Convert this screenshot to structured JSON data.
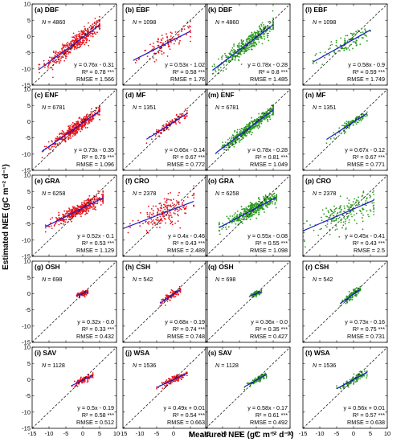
{
  "chart_data": {
    "type": "scatter",
    "xlabel": "Measured NEE (gC m⁻² d⁻¹)",
    "ylabel": "Estimated NEE (gC m⁻² d⁻¹)",
    "xlim": [
      -15,
      10
    ],
    "ylim": [
      -15,
      10
    ],
    "xticks": [
      -15,
      -10,
      -5,
      0,
      5,
      10
    ],
    "yticks": [
      -15,
      -10,
      -5,
      0,
      5,
      10
    ],
    "grid": false,
    "reference_line": "1:1",
    "panels": [
      {
        "label": "(a) DBF",
        "model": "red",
        "n": "4860",
        "slope": 0.76,
        "intercept": -0.31,
        "eq": "y = 0.76x - 0.31",
        "r2": "R² = 0.78 ***",
        "rmse": "RMSE = 1.566",
        "xrange": [
          -13,
          5
        ]
      },
      {
        "label": "(b) EBF",
        "model": "red",
        "n": "1098",
        "slope": 0.53,
        "intercept": -1.02,
        "eq": "y = 0.53x - 1.02",
        "r2": "R² = 0.58 ***",
        "rmse": "RMSE = 1.76",
        "xrange": [
          -12,
          5
        ]
      },
      {
        "label": "(k) DBF",
        "model": "green",
        "n": "4860",
        "slope": 0.78,
        "intercept": -0.28,
        "eq": "y = 0.78x - 0.28",
        "r2": "R² = 0.8 ***",
        "rmse": "RMSE = 1.485",
        "xrange": [
          -13,
          5
        ]
      },
      {
        "label": "(l) EBF",
        "model": "green",
        "n": "1098",
        "slope": 0.58,
        "intercept": -0.9,
        "eq": "y = 0.58x - 0.9",
        "r2": "R² = 0.59 ***",
        "rmse": "RMSE = 1.749",
        "xrange": [
          -12,
          5
        ]
      },
      {
        "label": "(c) ENF",
        "model": "red",
        "n": "6781",
        "slope": 0.73,
        "intercept": -0.35,
        "eq": "y = 0.73x - 0.35",
        "r2": "R² = 0.79 ***",
        "rmse": "RMSE = 1.096",
        "xrange": [
          -12,
          5
        ]
      },
      {
        "label": "(d) MF",
        "model": "red",
        "n": "1351",
        "slope": 0.66,
        "intercept": -0.14,
        "eq": "y = 0.66x - 0.14",
        "r2": "R² = 0.67 ***",
        "rmse": "RMSE = 0.772",
        "xrange": [
          -8,
          4
        ]
      },
      {
        "label": "(m) ENF",
        "model": "green",
        "n": "6781",
        "slope": 0.78,
        "intercept": -0.28,
        "eq": "y = 0.78x - 0.28",
        "r2": "R² = 0.81 ***",
        "rmse": "RMSE = 1.049",
        "xrange": [
          -12,
          5
        ]
      },
      {
        "label": "(n) MF",
        "model": "green",
        "n": "1351",
        "slope": 0.67,
        "intercept": -0.12,
        "eq": "y = 0.67x - 0.12",
        "r2": "R² = 0.67 ***",
        "rmse": "RMSE = 0.771",
        "xrange": [
          -8,
          4
        ]
      },
      {
        "label": "(e) GRA",
        "model": "red",
        "n": "6258",
        "slope": 0.52,
        "intercept": -0.1,
        "eq": "y = 0.52x - 0.1",
        "r2": "R² = 0.53 ***",
        "rmse": "RMSE = 1.129",
        "xrange": [
          -11,
          6
        ]
      },
      {
        "label": "(f) CRO",
        "model": "red",
        "n": "2378",
        "slope": 0.4,
        "intercept": -0.46,
        "eq": "y = 0.4x - 0.46",
        "r2": "R² = 0.43 ***",
        "rmse": "RMSE = 2.489",
        "xrange": [
          -15,
          6
        ]
      },
      {
        "label": "(o) GRA",
        "model": "green",
        "n": "6258",
        "slope": 0.55,
        "intercept": -0.08,
        "eq": "y = 0.55x - 0.08",
        "r2": "R² = 0.55 ***",
        "rmse": "RMSE = 1.098",
        "xrange": [
          -11,
          6
        ]
      },
      {
        "label": "(p) CRO",
        "model": "green",
        "n": "2378",
        "slope": 0.45,
        "intercept": -0.41,
        "eq": "y = 0.45x - 0.41",
        "r2": "R² = 0.43 ***",
        "rmse": "RMSE = 2.5",
        "xrange": [
          -15,
          6
        ]
      },
      {
        "label": "(g) OSH",
        "model": "red",
        "n": "698",
        "slope": 0.32,
        "intercept": 0.0,
        "eq": "y = 0.32x - 0.0",
        "r2": "R² = 0.33 ***",
        "rmse": "RMSE = 0.432",
        "xrange": [
          -2,
          1.5
        ]
      },
      {
        "label": "(h) CSH",
        "model": "red",
        "n": "542",
        "slope": 0.68,
        "intercept": -0.19,
        "eq": "y = 0.68x - 0.19",
        "r2": "R² = 0.74 ***",
        "rmse": "RMSE = 0.748",
        "xrange": [
          -4,
          2
        ]
      },
      {
        "label": "(q) OSH",
        "model": "green",
        "n": "698",
        "slope": 0.36,
        "intercept": 0.0,
        "eq": "y = 0.36x - 0.0",
        "r2": "R² = 0.35 ***",
        "rmse": "RMSE = 0.427",
        "xrange": [
          -2,
          1.5
        ]
      },
      {
        "label": "(r) CSH",
        "model": "green",
        "n": "542",
        "slope": 0.73,
        "intercept": -0.16,
        "eq": "y = 0.73x - 0.16",
        "r2": "R² = 0.75 ***",
        "rmse": "RMSE = 0.731",
        "xrange": [
          -4,
          2
        ]
      },
      {
        "label": "(i) SAV",
        "model": "red",
        "n": "1128",
        "slope": 0.5,
        "intercept": -0.19,
        "eq": "y = 0.5x - 0.19",
        "r2": "R² = 0.58 ***",
        "rmse": "RMSE = 0.512",
        "xrange": [
          -3.5,
          3
        ]
      },
      {
        "label": "(j) WSA",
        "model": "red",
        "n": "1536",
        "slope": 0.49,
        "intercept": 0.01,
        "eq": "y = 0.49x + 0.01",
        "r2": "R² = 0.54 ***",
        "rmse": "RMSE = 0.663",
        "xrange": [
          -5,
          4
        ]
      },
      {
        "label": "(s) SAV",
        "model": "green",
        "n": "1128",
        "slope": 0.58,
        "intercept": -0.17,
        "eq": "y = 0.58x - 0.17",
        "r2": "R² = 0.61 ***",
        "rmse": "RMSE = 0.492",
        "xrange": [
          -3.5,
          3
        ]
      },
      {
        "label": "(t) WSA",
        "model": "green",
        "n": "1536",
        "slope": 0.56,
        "intercept": 0.01,
        "eq": "y = 0.56x + 0.01",
        "r2": "R² = 0.57 ***",
        "rmse": "RMSE = 0.638",
        "xrange": [
          -5,
          4
        ]
      }
    ],
    "colors": {
      "red": "#e8141b",
      "green": "#2a9a1e",
      "regression": "#1b1bc9",
      "one_to_one": "#000000"
    }
  }
}
